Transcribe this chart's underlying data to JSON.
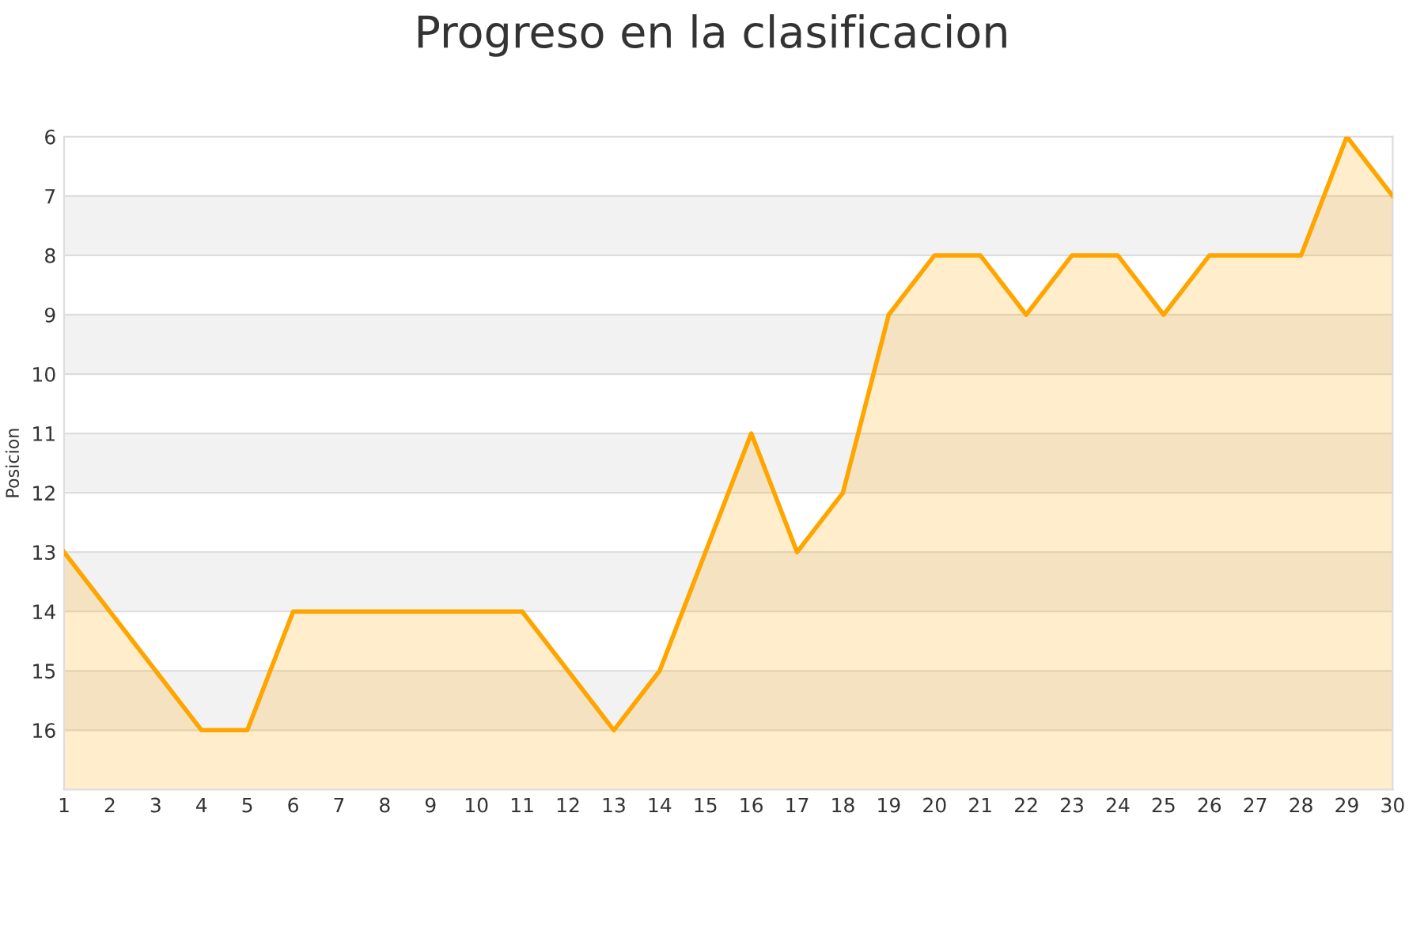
{
  "chart_data": {
    "type": "area",
    "title": "Progreso en la clasificacion",
    "ylabel": "Posicion",
    "x": [
      1,
      2,
      3,
      4,
      5,
      6,
      7,
      8,
      9,
      10,
      11,
      12,
      13,
      14,
      15,
      16,
      17,
      18,
      19,
      20,
      21,
      22,
      23,
      24,
      25,
      26,
      27,
      28,
      29,
      30
    ],
    "series": [
      {
        "color": "#ffa500",
        "values": [
          13,
          14,
          15,
          16,
          16,
          14,
          14,
          14,
          14,
          14,
          14,
          15,
          16,
          15,
          13,
          11,
          13,
          12,
          9,
          8,
          8,
          9,
          8,
          8,
          9,
          8,
          8,
          8,
          6,
          7
        ]
      }
    ],
    "xlim": [
      1,
      30
    ],
    "xticks": [
      1,
      2,
      3,
      4,
      5,
      6,
      7,
      8,
      9,
      10,
      11,
      12,
      13,
      14,
      15,
      16,
      17,
      18,
      19,
      20,
      21,
      22,
      23,
      24,
      25,
      26,
      27,
      28,
      29,
      30
    ],
    "ylim": [
      17,
      6
    ],
    "yticks": [
      6,
      7,
      8,
      9,
      10,
      11,
      12,
      13,
      14,
      15,
      16
    ],
    "bands": [
      {
        "axis": "y",
        "from": 7,
        "to": 8,
        "color": "#f2f2f2"
      },
      {
        "axis": "y",
        "from": 9,
        "to": 10,
        "color": "#f2f2f2"
      },
      {
        "axis": "y",
        "from": 11,
        "to": 12,
        "color": "#f2f2f2"
      },
      {
        "axis": "y",
        "from": 13,
        "to": 14,
        "color": "#f2f2f2"
      },
      {
        "axis": "y",
        "from": 15,
        "to": 16,
        "color": "#f2f2f2"
      }
    ],
    "grid": "y",
    "legend": false
  }
}
